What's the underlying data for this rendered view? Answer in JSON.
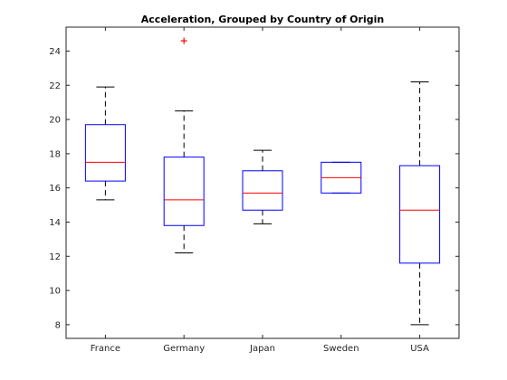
{
  "chart_data": {
    "type": "box",
    "title": "Acceleration, Grouped by Country of Origin",
    "xlabel": "",
    "ylabel": "",
    "ylim": [
      7.2,
      25.4
    ],
    "yticks": [
      8,
      10,
      12,
      14,
      16,
      18,
      20,
      22,
      24
    ],
    "grid": false,
    "categories": [
      "France",
      "Germany",
      "Japan",
      "Sweden",
      "USA"
    ],
    "boxes": [
      {
        "category": "France",
        "whisker_low": 15.3,
        "q1": 16.4,
        "median": 17.5,
        "q3": 19.7,
        "whisker_high": 21.9,
        "outliers": []
      },
      {
        "category": "Germany",
        "whisker_low": 12.2,
        "q1": 13.8,
        "median": 15.3,
        "q3": 17.8,
        "whisker_high": 20.5,
        "outliers": [
          24.6
        ]
      },
      {
        "category": "Japan",
        "whisker_low": 13.9,
        "q1": 14.7,
        "median": 15.7,
        "q3": 17.0,
        "whisker_high": 18.2,
        "outliers": []
      },
      {
        "category": "Sweden",
        "whisker_low": 15.7,
        "q1": 15.7,
        "median": 16.6,
        "q3": 17.5,
        "whisker_high": 17.5,
        "outliers": []
      },
      {
        "category": "USA",
        "whisker_low": 8.0,
        "q1": 11.6,
        "median": 14.7,
        "q3": 17.3,
        "whisker_high": 22.2,
        "outliers": []
      }
    ],
    "colors": {
      "box": "#0000ff",
      "median": "#ff0000",
      "whisker": "#000000",
      "outlier": "#ff0000",
      "axis": "#262626"
    }
  }
}
